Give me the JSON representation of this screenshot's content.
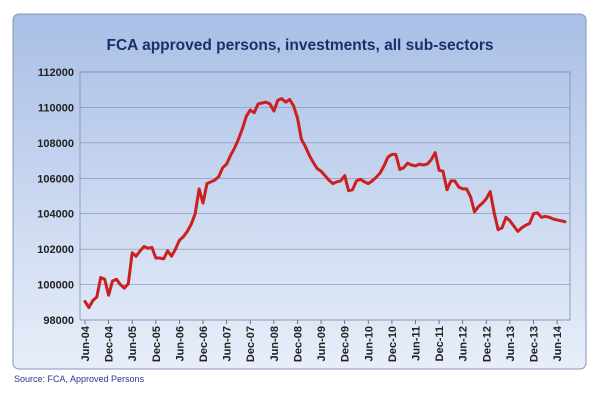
{
  "chart_data": {
    "type": "line",
    "title": "FCA approved persons, investments, all sub-sectors",
    "xlabel": "",
    "ylabel": "",
    "ylim": [
      98000,
      112000
    ],
    "yticks": [
      98000,
      100000,
      102000,
      104000,
      106000,
      108000,
      110000,
      112000
    ],
    "xticks": [
      "Jun-04",
      "Dec-04",
      "Jun-05",
      "Dec-05",
      "Jun-06",
      "Dec-06",
      "Jun-07",
      "Dec-07",
      "Jun-08",
      "Dec-08",
      "Jun-09",
      "Dec-09",
      "Jun-10",
      "Dec-10",
      "Jun-11",
      "Dec-11",
      "Jun-12",
      "Dec-12",
      "Jun-13",
      "Dec-13",
      "Jun-14"
    ],
    "grid": true,
    "legend": "none",
    "series": [
      {
        "color": "#cc1f1f",
        "values": [
          99050,
          98700,
          99100,
          99300,
          100400,
          100300,
          99400,
          100200,
          100300,
          100000,
          99800,
          100050,
          101800,
          101600,
          101900,
          102150,
          102050,
          102100,
          101500,
          101500,
          101450,
          101900,
          101600,
          102000,
          102500,
          102700,
          103000,
          103400,
          104000,
          105400,
          104600,
          105700,
          105800,
          105900,
          106100,
          106600,
          106800,
          107300,
          107700,
          108200,
          108800,
          109500,
          109850,
          109700,
          110200,
          110250,
          110300,
          110200,
          109800,
          110400,
          110500,
          110300,
          110450,
          110100,
          109400,
          108200,
          107800,
          107300,
          106900,
          106550,
          106400,
          106150,
          105900,
          105700,
          105800,
          105850,
          106150,
          105300,
          105350,
          105850,
          105950,
          105800,
          105700,
          105850,
          106050,
          106300,
          106700,
          107200,
          107350,
          107350,
          106500,
          106600,
          106850,
          106750,
          106700,
          106800,
          106750,
          106800,
          107050,
          107450,
          106450,
          106400,
          105350,
          105850,
          105850,
          105500,
          105400,
          105400,
          104950,
          104100,
          104400,
          104600,
          104850,
          105250,
          104050,
          103100,
          103200,
          103800,
          103600,
          103300,
          103000,
          103200,
          103350,
          103450,
          104000,
          104050,
          103800,
          103850,
          103800,
          103700,
          103650,
          103600,
          103550
        ]
      }
    ]
  },
  "footer": {
    "source": "Source: FCA, Approved Persons"
  },
  "colors": {
    "plot_bg_top": "#a9bfe6",
    "plot_bg_bottom": "#e6ecf8",
    "title_bg": "#c4d3ee",
    "line": "#cc1f1f",
    "frame": "#6f85b0"
  }
}
